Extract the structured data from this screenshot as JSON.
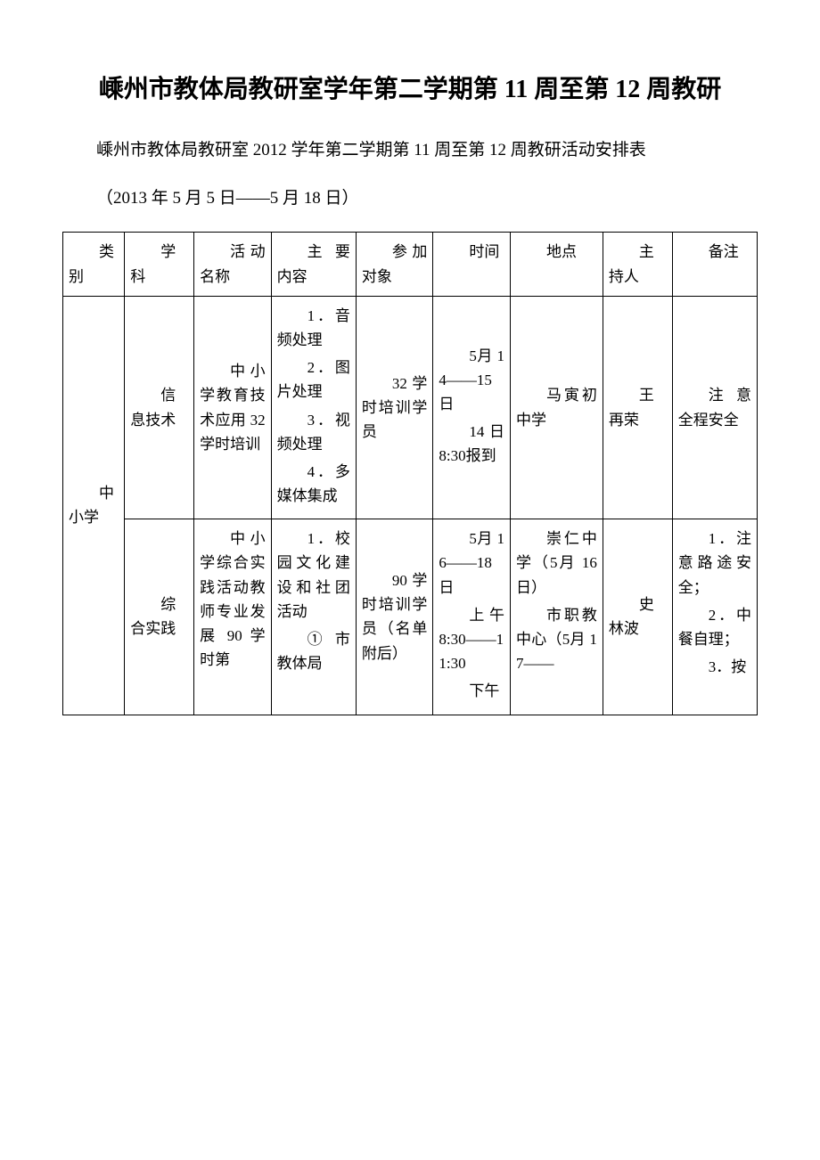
{
  "title": "嵊州市教体局教研室学年第二学期第 11 周至第 12 周教研",
  "subtitle": "嵊州市教体局教研室 2012 学年第二学期第 11 周至第 12 周教研活动安排表",
  "date_range": "（2013 年 5 月 5 日――5 月 18 日）",
  "headers": {
    "category": "类别",
    "subject": "学科",
    "activity": "活动名称",
    "content": "主要内容",
    "participants": "参加对象",
    "time": "时间",
    "location": "地点",
    "host": "主持人",
    "remarks": "备注"
  },
  "rows": [
    {
      "category": "中小学",
      "subject": "信息技术",
      "activity": "中小学教育技术应用 32 学时培训",
      "content_items": [
        "1．音频处理",
        "2．图片处理",
        "3．视频处理",
        "4．多媒体集成"
      ],
      "participants": "32 学时培训学员",
      "time_items": [
        "5月 14――15 日",
        "14 日 8:30报到"
      ],
      "location": "马寅初中学",
      "host": "王再荣",
      "remarks": "注意全程安全"
    },
    {
      "subject": "综合实践",
      "activity": "中小学综合实践活动教师专业发展 90 学时第",
      "content_items": [
        "1．校园文化建设和社团活动",
        "①市教体局"
      ],
      "participants": "90 学时培训学员（名单附后）",
      "time_items": [
        "5月 16――18 日",
        "上午 8:30――11:30",
        "下午"
      ],
      "location_items": [
        "崇仁中学（5月 16日）",
        "市职教中心（5月 17――"
      ],
      "host": "史林波",
      "remarks_items": [
        "1．注意路途安全；",
        "2．中餐自理；",
        "3．按"
      ]
    }
  ],
  "colors": {
    "text": "#000000",
    "border": "#000000",
    "background": "#ffffff"
  }
}
